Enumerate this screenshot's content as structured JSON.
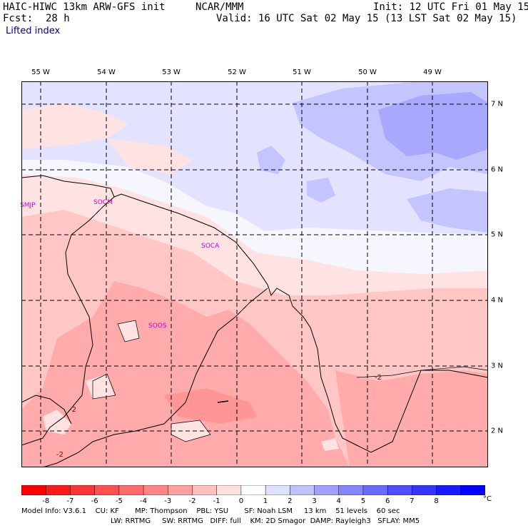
{
  "header": {
    "model": "HAIC-HIWC 13km ARW-GFS init",
    "org": "NCAR/MMM",
    "init": "Init: 12 UTC Fri 01 May 15",
    "fcst_label": "Fcst:",
    "fcst_value": "28 h",
    "valid": "Valid: 16 UTC Sat 02 May 15 (13 LST Sat 02 May 15)",
    "field": "Lifted index"
  },
  "map": {
    "lon_labels": [
      "55 W",
      "54 W",
      "53 W",
      "52 W",
      "51 W",
      "50 W",
      "49 W"
    ],
    "lat_labels": [
      "7 N",
      "6 N",
      "5 N",
      "4 N",
      "3 N",
      "2 N"
    ],
    "stations": [
      "SMJP",
      "SOCM",
      "SOCA",
      "SOOS"
    ],
    "contour_labels": [
      "-2",
      "-2",
      "-2"
    ]
  },
  "colorbar": {
    "ticks": [
      "-8",
      "-7",
      "-6",
      "-5",
      "-4",
      "-3",
      "-2",
      "-1",
      "0",
      "1",
      "2",
      "3",
      "4",
      "5",
      "6",
      "7",
      "8"
    ],
    "unit": "°C",
    "colors": [
      "#ff0000",
      "#ff1a1a",
      "#ff3535",
      "#ff4f4f",
      "#ff6a6a",
      "#ff8585",
      "#ffa0a0",
      "#ffc0c0",
      "#ffe0e0",
      "#ffffff",
      "#e0e0ff",
      "#c0c0ff",
      "#a0a0ff",
      "#8585ff",
      "#6a6aff",
      "#4f4fff",
      "#3535ff",
      "#1a1aff",
      "#0000ff"
    ]
  },
  "model_info": {
    "line1": "Model Info: V3.6.1    CU: KF       MP: Thompson    PBL: YSU       SF: Noah LSM     13 km    51 levels    60 sec",
    "line2": "LW: RRTMG     SW: RRTMG   DIFF: full    KM: 2D Smagor  DAMP: Rayleigh3   SFLAY: MM5"
  }
}
